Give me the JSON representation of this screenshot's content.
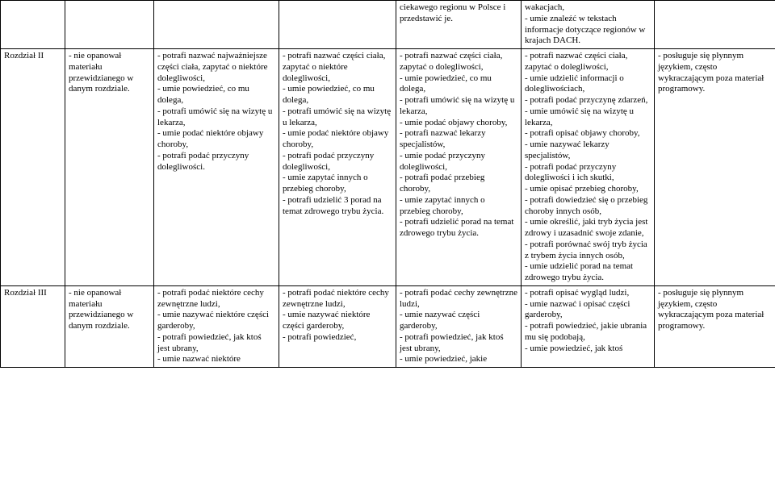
{
  "table": {
    "colors": {
      "border": "#000000",
      "text": "#000000",
      "bg": "#ffffff"
    },
    "font_size": 11,
    "rows": [
      {
        "cells": [
          "",
          "",
          "",
          "",
          "ciekawego regionu w Polsce i przedstawić je.",
          "wakacjach,\n- umie znaleźć w tekstach informacje dotyczące regionów w krajach DACH.",
          ""
        ]
      },
      {
        "cells": [
          "Rozdział II",
          "-  nie opanował materiału przewidzianego w danym rozdziale.",
          "- potrafi nazwać najważniejsze części ciała, zapytać o niektóre dolegliwości,\n- umie powiedzieć, co mu dolega,\n- potrafi umówić się na wizytę u lekarza,\n- umie podać niektóre objawy choroby,\n- potrafi podać przyczyny dolegliwości.",
          "- potrafi nazwać części ciała, zapytać o niektóre dolegliwości,\n- umie powiedzieć, co mu dolega,\n- potrafi umówić się na wizytę u lekarza,\n- umie podać niektóre objawy choroby,\n- potrafi podać przyczyny dolegliwości,\n- umie zapytać innych o przebieg choroby,\n- potrafi udzielić 3 porad na temat zdrowego trybu życia.",
          "- potrafi nazwać części ciała, zapytać o dolegliwości,\n- umie powiedzieć, co mu dolega,\n- potrafi umówić się na wizytę u lekarza,\n- umie podać objawy choroby,\n- potrafi nazwać lekarzy specjalistów,\n- umie podać przyczyny dolegliwości,\n- potrafi podać przebieg choroby,\n - umie zapytać innych o przebieg choroby,\n- potrafi udzielić porad na temat zdrowego trybu życia.",
          "- potrafi nazwać części ciała, zapytać o dolegliwości,\n- umie udzielić informacji o dolegliwościach,\n- potrafi podać przyczynę zdarzeń,\n- umie umówić się na wizytę u lekarza,\n- potrafi opisać objawy choroby,\n- umie nazywać lekarzy specjalistów,\n- potrafi podać przyczyny dolegliwości i ich skutki,\n- umie opisać przebieg choroby,\n- potrafi dowiedzieć się o przebieg choroby innych osób,\n- umie określić, jaki tryb życia jest zdrowy i uzasadnić swoje zdanie,\n- potrafi porównać swój tryb życia z trybem życia innych osób,\n- umie udzielić porad na temat zdrowego trybu życia.",
          "- posługuje się płynnym językiem, często wykraczającym poza materiał programowy."
        ]
      },
      {
        "cells": [
          "Rozdział III",
          "-  nie opanował materiału przewidzianego w danym rozdziale.",
          "- potrafi podać niektóre cechy zewnętrzne ludzi,\n- umie nazywać niektóre części garderoby,\n- potrafi powiedzieć, jak ktoś jest ubrany,\n- umie nazwać niektóre",
          "- potrafi podać niektóre cechy zewnętrzne ludzi,\n- umie nazywać niektóre części garderoby,\n- potrafi powiedzieć,",
          "- potrafi podać cechy zewnętrzne ludzi,\n- umie nazywać części garderoby,\n- potrafi powiedzieć, jak ktoś jest ubrany,\n- umie powiedzieć, jakie",
          "- potrafi opisać wygląd ludzi,\n- umie nazwać i opisać części garderoby,\n- potrafi powiedzieć, jakie ubrania mu się podobają,\n- umie powiedzieć, jak ktoś",
          "- posługuje się płynnym językiem, często wykraczającym poza materiał programowy."
        ]
      }
    ]
  }
}
